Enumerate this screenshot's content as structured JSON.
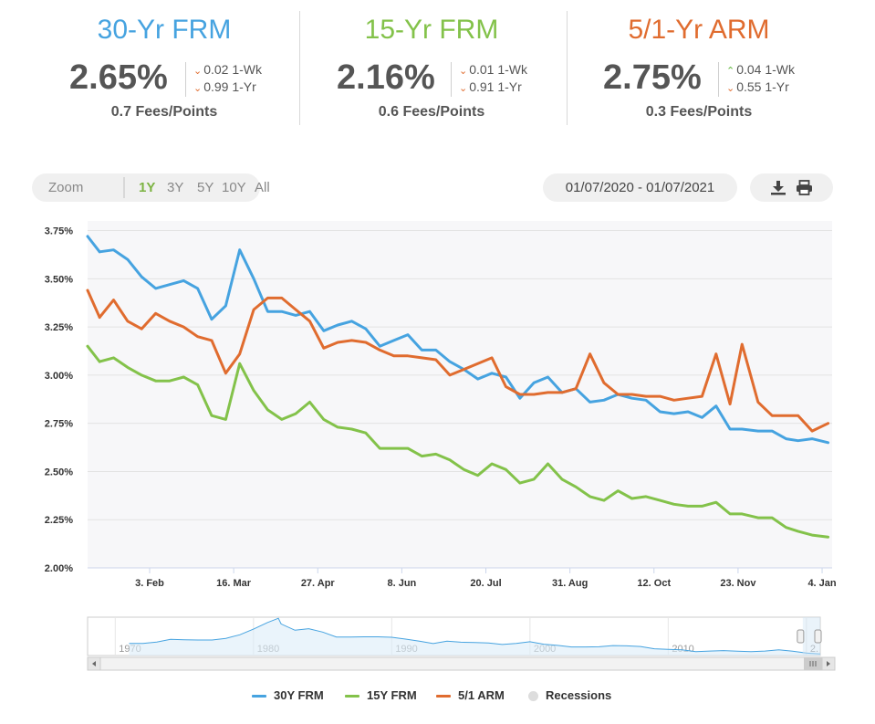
{
  "cards": [
    {
      "title": "30-Yr FRM",
      "rate": "2.65%",
      "wk_dir": "down",
      "wk": "0.02 1-Wk",
      "yr_dir": "down",
      "yr": "0.99 1-Yr",
      "fees": "0.7 Fees/Points",
      "color": "#46a3e0"
    },
    {
      "title": "15-Yr FRM",
      "rate": "2.16%",
      "wk_dir": "down",
      "wk": "0.01 1-Wk",
      "yr_dir": "down",
      "yr": "0.91 1-Yr",
      "fees": "0.6 Fees/Points",
      "color": "#83c24a"
    },
    {
      "title": "5/1-Yr ARM",
      "rate": "2.75%",
      "wk_dir": "up",
      "wk": "0.04 1-Wk",
      "yr_dir": "down",
      "yr": "0.55 1-Yr",
      "fees": "0.3 Fees/Points",
      "color": "#e06c2f"
    }
  ],
  "toolbar": {
    "zoom_label": "Zoom",
    "zoom_options": [
      "1Y",
      "3Y",
      "5Y",
      "10Y",
      "All"
    ],
    "active_zoom": "1Y",
    "date_range": "01/07/2020 - 01/07/2021"
  },
  "legend": {
    "items": [
      {
        "label": "30Y FRM",
        "color": "#46a3e0"
      },
      {
        "label": "15Y FRM",
        "color": "#83c24a"
      },
      {
        "label": "5/1 ARM",
        "color": "#e06c2f"
      },
      {
        "label": "Recessions",
        "color": "#dddddd"
      }
    ]
  },
  "chart_data": {
    "type": "line",
    "x": [
      "2020-01-09",
      "2020-01-16",
      "2020-01-23",
      "2020-01-30",
      "2020-02-06",
      "2020-02-13",
      "2020-02-20",
      "2020-02-27",
      "2020-03-05",
      "2020-03-12",
      "2020-03-19",
      "2020-03-26",
      "2020-04-02",
      "2020-04-09",
      "2020-04-16",
      "2020-04-23",
      "2020-04-30",
      "2020-05-07",
      "2020-05-14",
      "2020-05-21",
      "2020-05-28",
      "2020-06-04",
      "2020-06-11",
      "2020-06-18",
      "2020-06-25",
      "2020-07-02",
      "2020-07-09",
      "2020-07-16",
      "2020-07-23",
      "2020-07-30",
      "2020-08-06",
      "2020-08-13",
      "2020-08-20",
      "2020-08-27",
      "2020-09-03",
      "2020-09-10",
      "2020-09-17",
      "2020-09-24",
      "2020-10-01",
      "2020-10-08",
      "2020-10-15",
      "2020-10-22",
      "2020-10-29",
      "2020-11-05",
      "2020-11-12",
      "2020-11-19",
      "2020-11-25",
      "2020-12-03",
      "2020-12-10",
      "2020-12-17",
      "2020-12-23",
      "2020-12-30",
      "2021-01-07"
    ],
    "series": [
      {
        "name": "30Y FRM",
        "color": "#46a3e0",
        "values": [
          3.64,
          3.65,
          3.6,
          3.51,
          3.45,
          3.47,
          3.49,
          3.45,
          3.29,
          3.36,
          3.65,
          3.5,
          3.33,
          3.33,
          3.31,
          3.33,
          3.23,
          3.26,
          3.28,
          3.24,
          3.15,
          3.18,
          3.21,
          3.13,
          3.13,
          3.07,
          3.03,
          2.98,
          3.01,
          2.99,
          2.88,
          2.96,
          2.99,
          2.91,
          2.93,
          2.86,
          2.87,
          2.9,
          2.88,
          2.87,
          2.81,
          2.8,
          2.81,
          2.78,
          2.84,
          2.72,
          2.72,
          2.71,
          2.71,
          2.67,
          2.66,
          2.67,
          2.65
        ]
      },
      {
        "name": "15Y FRM",
        "color": "#83c24a",
        "values": [
          3.07,
          3.09,
          3.04,
          3.0,
          2.97,
          2.97,
          2.99,
          2.95,
          2.79,
          2.77,
          3.06,
          2.92,
          2.82,
          2.77,
          2.8,
          2.86,
          2.77,
          2.73,
          2.72,
          2.7,
          2.62,
          2.62,
          2.62,
          2.58,
          2.59,
          2.56,
          2.51,
          2.48,
          2.54,
          2.51,
          2.44,
          2.46,
          2.54,
          2.46,
          2.42,
          2.37,
          2.35,
          2.4,
          2.36,
          2.37,
          2.35,
          2.33,
          2.32,
          2.32,
          2.34,
          2.28,
          2.28,
          2.26,
          2.26,
          2.21,
          2.19,
          2.17,
          2.16
        ]
      },
      {
        "name": "5/1 ARM",
        "color": "#e06c2f",
        "values": [
          3.3,
          3.39,
          3.28,
          3.24,
          3.32,
          3.28,
          3.25,
          3.2,
          3.18,
          3.01,
          3.11,
          3.34,
          3.4,
          3.4,
          3.34,
          3.28,
          3.14,
          3.17,
          3.18,
          3.17,
          3.13,
          3.1,
          3.1,
          3.09,
          3.08,
          3.0,
          3.03,
          3.06,
          3.09,
          2.94,
          2.9,
          2.9,
          2.91,
          2.91,
          2.93,
          3.11,
          2.96,
          2.9,
          2.9,
          2.89,
          2.89,
          2.87,
          2.88,
          2.89,
          3.11,
          2.85,
          3.16,
          2.86,
          2.79,
          2.79,
          2.79,
          2.71,
          2.75
        ]
      }
    ],
    "title": "",
    "xlabel": "",
    "ylabel": "",
    "ylim": [
      2.0,
      3.75
    ],
    "y_ticks": [
      "2.00%",
      "2.25%",
      "2.50%",
      "2.75%",
      "3.00%",
      "3.25%",
      "3.50%",
      "3.75%"
    ],
    "x_ticks": [
      "3. Feb",
      "16. Mar",
      "27. Apr",
      "8. Jun",
      "20. Jul",
      "31. Aug",
      "12. Oct",
      "23. Nov",
      "4. Jan"
    ],
    "x_tick_dates": [
      "2020-02-03",
      "2020-03-16",
      "2020-04-27",
      "2020-06-08",
      "2020-07-20",
      "2020-08-31",
      "2020-10-12",
      "2020-11-23",
      "2021-01-04"
    ],
    "grid": true,
    "legend": "bottom-center",
    "navigator": {
      "labels": [
        "1970",
        "1980",
        "1990",
        "2000",
        "2010",
        "2."
      ],
      "label_years": [
        1970,
        1980,
        1990,
        2000,
        2010,
        2020
      ],
      "range": [
        1968,
        2021
      ],
      "selected_range": [
        "2020-01-07",
        "2021-01-07"
      ],
      "series_30y": [
        [
          1971,
          7.4
        ],
        [
          1972,
          7.4
        ],
        [
          1973,
          8.0
        ],
        [
          1974,
          9.2
        ],
        [
          1975,
          9.0
        ],
        [
          1976,
          8.9
        ],
        [
          1977,
          8.9
        ],
        [
          1978,
          9.6
        ],
        [
          1979,
          11.2
        ],
        [
          1980,
          13.7
        ],
        [
          1981,
          16.6
        ],
        [
          1981.8,
          18.5
        ],
        [
          1982,
          16.0
        ],
        [
          1983,
          13.2
        ],
        [
          1984,
          13.9
        ],
        [
          1985,
          12.4
        ],
        [
          1986,
          10.2
        ],
        [
          1987,
          10.2
        ],
        [
          1988,
          10.3
        ],
        [
          1989,
          10.3
        ],
        [
          1990,
          10.1
        ],
        [
          1991,
          9.3
        ],
        [
          1992,
          8.4
        ],
        [
          1993,
          7.3
        ],
        [
          1994,
          8.4
        ],
        [
          1995,
          7.9
        ],
        [
          1996,
          7.8
        ],
        [
          1997,
          7.6
        ],
        [
          1998,
          6.9
        ],
        [
          1999,
          7.4
        ],
        [
          2000,
          8.1
        ],
        [
          2001,
          7.0
        ],
        [
          2002,
          6.5
        ],
        [
          2003,
          5.8
        ],
        [
          2004,
          5.8
        ],
        [
          2005,
          5.9
        ],
        [
          2006,
          6.4
        ],
        [
          2007,
          6.3
        ],
        [
          2008,
          6.0
        ],
        [
          2009,
          5.0
        ],
        [
          2010,
          4.7
        ],
        [
          2011,
          4.5
        ],
        [
          2012,
          3.7
        ],
        [
          2013,
          4.0
        ],
        [
          2014,
          4.2
        ],
        [
          2015,
          3.9
        ],
        [
          2016,
          3.7
        ],
        [
          2017,
          4.0
        ],
        [
          2018,
          4.5
        ],
        [
          2019,
          3.9
        ],
        [
          2020,
          3.1
        ],
        [
          2021,
          2.7
        ]
      ]
    }
  }
}
